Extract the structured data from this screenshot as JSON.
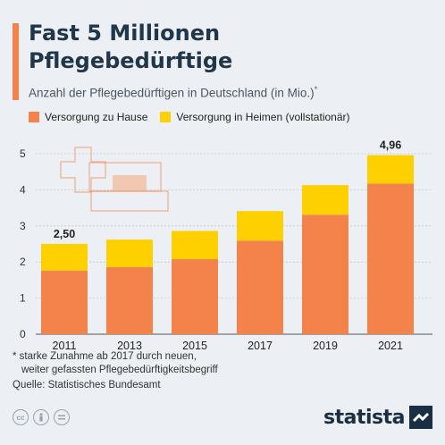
{
  "header": {
    "title": "Fast 5 Millionen Pflegebedürftige",
    "subtitle": "Anzahl der Pflegebedürftigen in Deutschland (in Mio.)",
    "subtitle_marker": "*"
  },
  "legend": {
    "items": [
      {
        "label": "Versorgung zu Hause",
        "color": "#f4834b"
      },
      {
        "label": "Versorgung in Heimen (vollstationär)",
        "color": "#ffd000"
      }
    ]
  },
  "chart_data": {
    "type": "bar",
    "stacked": true,
    "categories": [
      "2011",
      "2013",
      "2015",
      "2017",
      "2019",
      "2021"
    ],
    "series": [
      {
        "name": "Versorgung zu Hause",
        "color": "#f4834b",
        "values": [
          1.76,
          1.86,
          2.08,
          2.59,
          3.31,
          4.17
        ]
      },
      {
        "name": "Versorgung in Heimen (vollstationär)",
        "color": "#ffd000",
        "values": [
          0.74,
          0.76,
          0.78,
          0.82,
          0.82,
          0.79
        ]
      }
    ],
    "totals": [
      2.5,
      2.62,
      2.86,
      3.41,
      4.13,
      4.96
    ],
    "data_labels": {
      "2011": "2,50",
      "2021": "4,96"
    },
    "yticks": [
      "0",
      "1",
      "2",
      "3",
      "4",
      "5"
    ],
    "ylim": [
      0,
      5
    ],
    "grid": true,
    "legend_position": "top-left"
  },
  "footer": {
    "note_line1": "* starke Zunahme ab 2017 durch neuen,",
    "note_line2": "weiter gefassten Pflegebedürftigkeitsbegriff",
    "source": "Quelle: Statistisches Bundesamt",
    "license_icons": [
      "cc-icon",
      "by-icon",
      "nd-icon"
    ],
    "brand": "statista"
  }
}
